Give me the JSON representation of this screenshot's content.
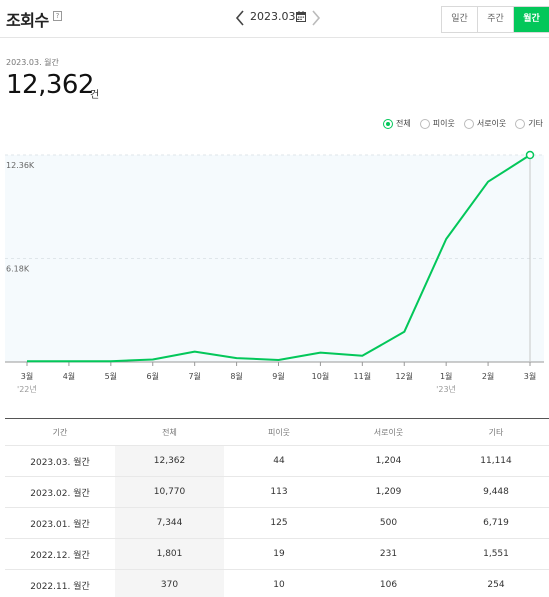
{
  "header": {
    "title": "조회수",
    "help": "?",
    "date": "2023.03.",
    "segments": [
      "일간",
      "주간",
      "월간"
    ]
  },
  "summary": {
    "period": "2023.03. 월간",
    "value": "12,362",
    "unit": "건"
  },
  "legend": [
    "전체",
    "피이웃",
    "서로이웃",
    "기타"
  ],
  "colors": {
    "accent": "#03c75a",
    "chart_fill": "#f5fafd"
  },
  "chart_data": {
    "type": "line",
    "categories": [
      "3월",
      "4월",
      "5월",
      "6월",
      "7월",
      "8월",
      "9월",
      "10월",
      "11월",
      "12월",
      "1월",
      "2월",
      "3월"
    ],
    "year_labels": [
      {
        "index": 0,
        "label": "'22년"
      },
      {
        "index": 10,
        "label": "'23년"
      }
    ],
    "y_ticks": [
      "6.18K",
      "12.36K"
    ],
    "ylim": [
      0,
      12362
    ],
    "series": [
      {
        "values": [
          40,
          45,
          50,
          150,
          620,
          230,
          120,
          560,
          370,
          1801,
          7344,
          10770,
          12362
        ]
      }
    ],
    "highlight_index": 12
  },
  "table": {
    "headers": [
      "기간",
      "전체",
      "피이웃",
      "서로이웃",
      "기타"
    ],
    "rows": [
      [
        "2023.03. 월간",
        "12,362",
        "44",
        "1,204",
        "11,114"
      ],
      [
        "2023.02. 월간",
        "10,770",
        "113",
        "1,209",
        "9,448"
      ],
      [
        "2023.01. 월간",
        "7,344",
        "125",
        "500",
        "6,719"
      ],
      [
        "2022.12. 월간",
        "1,801",
        "19",
        "231",
        "1,551"
      ],
      [
        "2022.11. 월간",
        "370",
        "10",
        "106",
        "254"
      ]
    ]
  }
}
